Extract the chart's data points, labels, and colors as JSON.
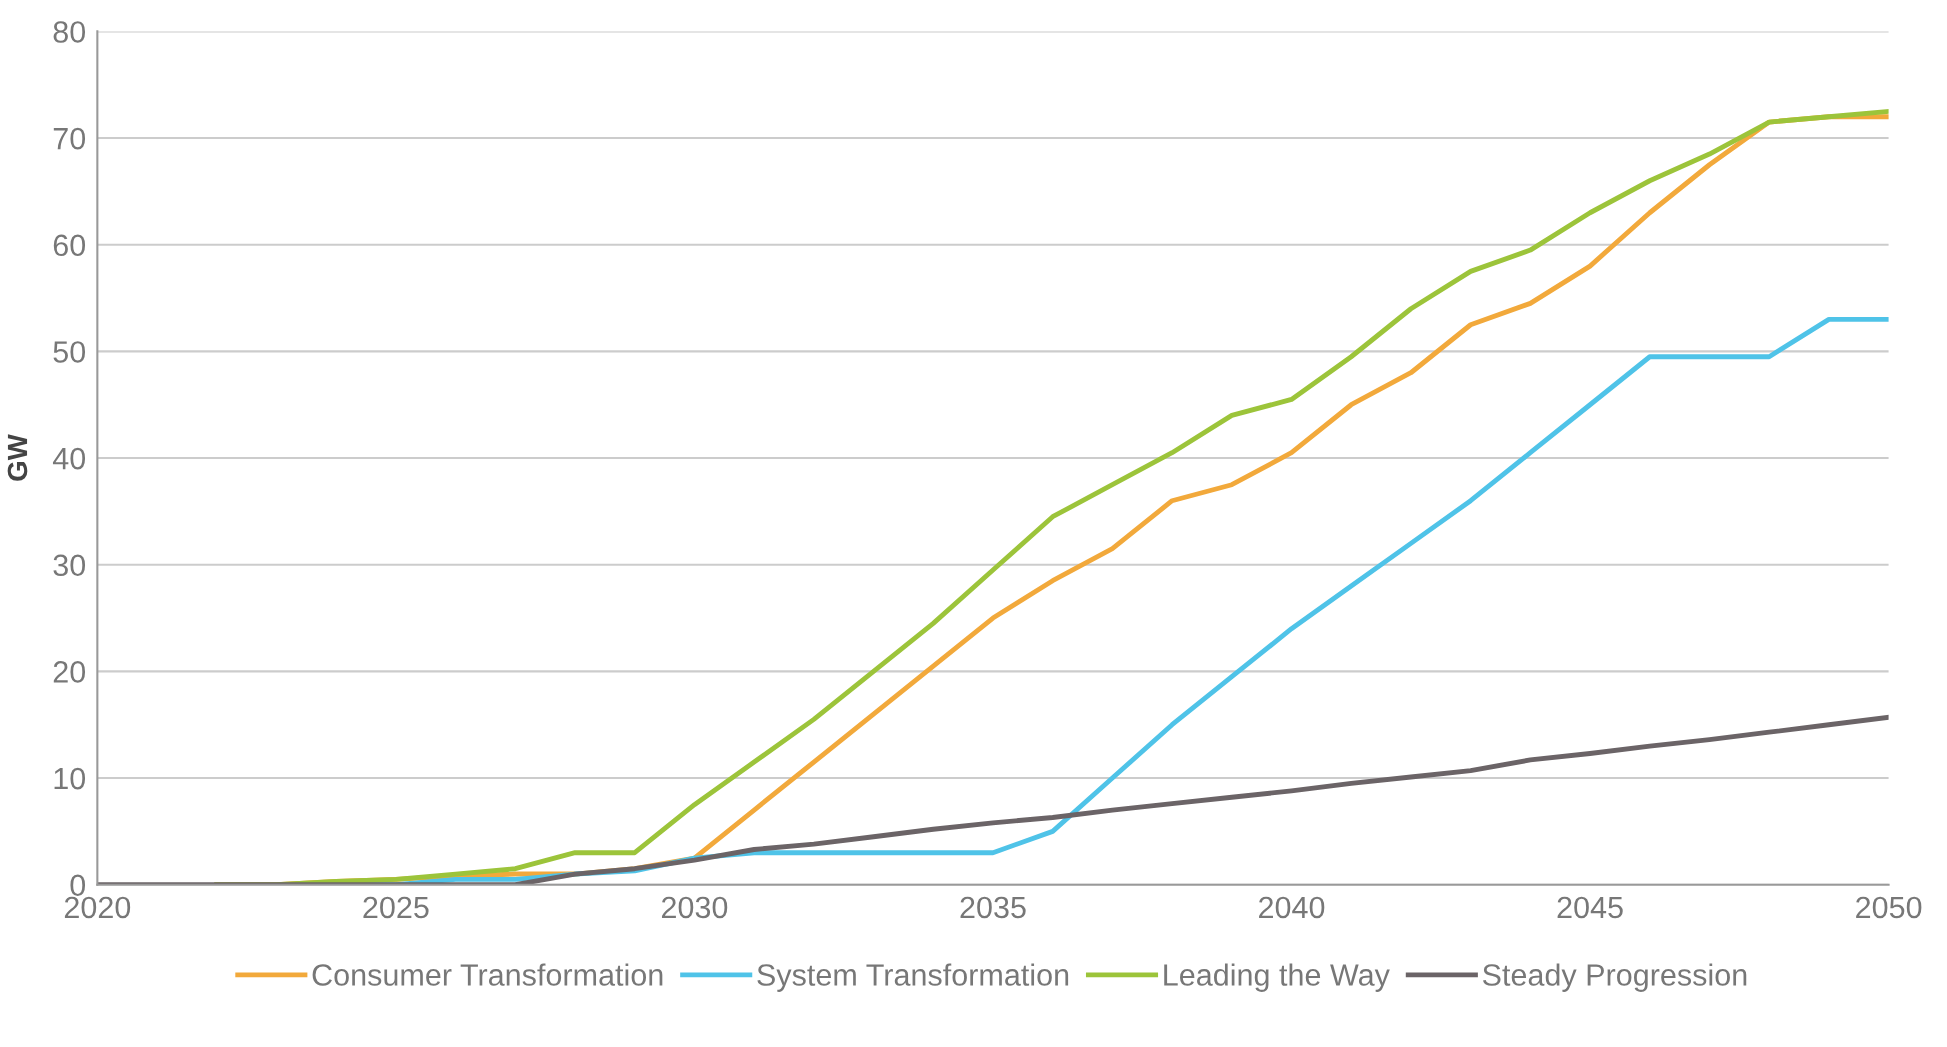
{
  "chart_data": {
    "type": "line",
    "ylabel": "GW",
    "x": [
      2020,
      2021,
      2022,
      2023,
      2024,
      2025,
      2026,
      2027,
      2028,
      2029,
      2030,
      2031,
      2032,
      2033,
      2034,
      2035,
      2036,
      2037,
      2038,
      2039,
      2040,
      2041,
      2042,
      2043,
      2044,
      2045,
      2046,
      2047,
      2048,
      2049,
      2050
    ],
    "series": [
      {
        "name": "Consumer Transformation",
        "color": "#f2a93b",
        "values": [
          null,
          null,
          0,
          0,
          0.3,
          0.5,
          0.8,
          1,
          1,
          1.5,
          2.5,
          7,
          11.5,
          16,
          20.5,
          25,
          28.5,
          31.5,
          36,
          37.5,
          40.5,
          45,
          48,
          52.5,
          54.5,
          58,
          63,
          67.5,
          71.5,
          72,
          72
        ]
      },
      {
        "name": "System Transformation",
        "color": "#4fc3e8",
        "values": [
          null,
          null,
          null,
          null,
          0,
          0,
          0.5,
          0.5,
          1,
          1.3,
          2.5,
          3,
          3,
          3,
          3,
          3,
          5,
          10,
          15,
          19.5,
          24,
          28,
          32,
          36,
          40.5,
          45,
          49.5,
          49.5,
          49.5,
          53,
          53
        ]
      },
      {
        "name": "Leading the Way",
        "color": "#9cc43a",
        "values": [
          null,
          null,
          0,
          0,
          0.3,
          0.5,
          1,
          1.5,
          3,
          3,
          7.5,
          11.5,
          15.5,
          20,
          24.5,
          29.5,
          34.5,
          37.5,
          40.5,
          44,
          45.5,
          49.5,
          54,
          57.5,
          59.5,
          63,
          66,
          68.5,
          71.5,
          72,
          72.5
        ]
      },
      {
        "name": "Steady Progression",
        "color": "#6b6467",
        "values": [
          0,
          0,
          0,
          0,
          0,
          0,
          0,
          0,
          1,
          1.5,
          2.3,
          3.3,
          3.8,
          4.5,
          5.2,
          5.8,
          6.3,
          7,
          7.6,
          8.2,
          8.8,
          9.5,
          10.1,
          10.7,
          11.7,
          12.3,
          13,
          13.6,
          14.3,
          15,
          15.7
        ]
      }
    ],
    "xlim": [
      2020,
      2050
    ],
    "xticks": [
      2020,
      2025,
      2030,
      2035,
      2040,
      2045,
      2050
    ],
    "ylim": [
      0,
      80
    ],
    "yticks": [
      0,
      10,
      20,
      30,
      40,
      50,
      60,
      70,
      80
    ],
    "grid": "y",
    "legend": "bottom",
    "marker": "none",
    "line_style": "solid"
  }
}
